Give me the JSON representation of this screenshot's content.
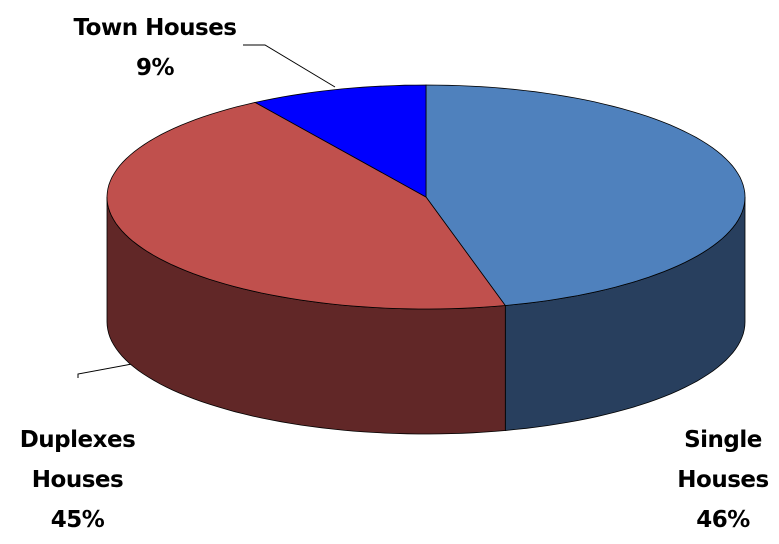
{
  "chart_data": {
    "type": "pie3d",
    "categories": [
      "Single Houses",
      "Duplexes Houses",
      "Town Houses"
    ],
    "values": [
      46,
      45,
      9
    ],
    "value_labels": [
      "46%",
      "45%",
      "9%"
    ],
    "colors": [
      "#4f81bd",
      "#c0504d",
      "#0000ff"
    ],
    "side_colors": [
      "#283f5e",
      "#612727",
      "#00007a"
    ]
  }
}
